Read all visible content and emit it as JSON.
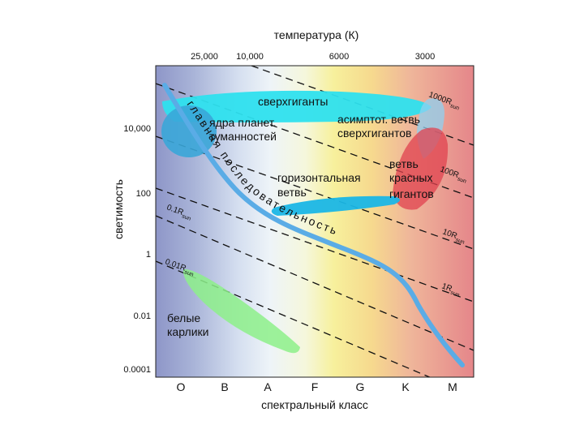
{
  "top_axis": {
    "title": "температура (К)",
    "ticks": [
      "25,000",
      "10,000",
      "6000",
      "3000"
    ]
  },
  "left_axis": {
    "title": "светимость",
    "ticks": [
      "10,000",
      "100",
      "1",
      "0.01",
      "0.0001"
    ]
  },
  "bottom_axis": {
    "title": "спектральный класс",
    "classes": [
      "O",
      "B",
      "A",
      "F",
      "G",
      "K",
      "M"
    ]
  },
  "regions": {
    "supergiants": "сверхгиганты",
    "pn_nuclei_line1": "ядра планет.",
    "pn_nuclei_line2": "туманностей",
    "agb_line1": "асимптот. ветвь",
    "agb_line2": "сверхгигантов",
    "rgb_line1": "ветвь",
    "rgb_line2": "красных",
    "rgb_line3": "гигантов",
    "hb_line1": "горизонтальная",
    "hb_line2": "ветвь",
    "wd_line1": "белые",
    "wd_line2": "карлики",
    "main_sequence_word1": "главная",
    "main_sequence_word2": "последовательность"
  },
  "radius_lines": {
    "r1000": "1000R",
    "r100": "100R",
    "r10": "10R",
    "r1": "1R",
    "r01": "0.1R",
    "r001": "0.01R",
    "sub": "sun"
  },
  "colors": {
    "supergiants": "#2ee0ee",
    "pn_nuclei": "#3aa6d8",
    "rgb": "#e0414f",
    "hb": "#1ab6e6",
    "white_dwarfs": "#8df08a",
    "main_sequence": "#5aace6"
  }
}
